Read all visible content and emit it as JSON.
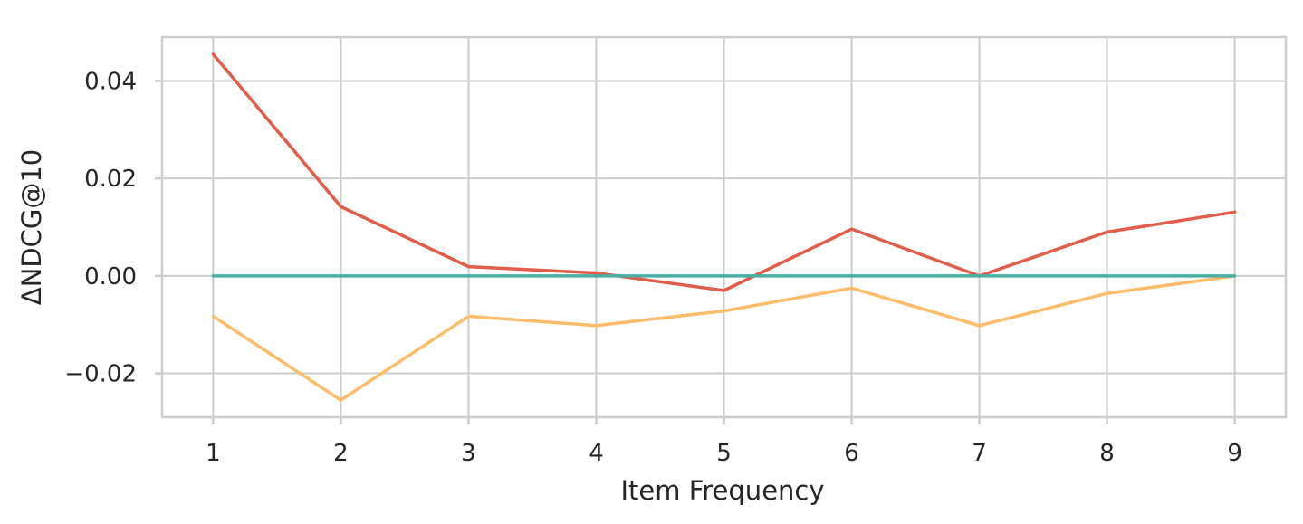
{
  "chart_data": {
    "type": "line",
    "x": [
      1,
      2,
      3,
      4,
      5,
      6,
      7,
      8,
      9
    ],
    "xlabel": "Item Frequency",
    "ylabel": "ΔNDCG@10",
    "xlim": [
      0.6,
      9.4
    ],
    "ylim": [
      -0.029,
      0.049
    ],
    "xticks": [
      1,
      2,
      3,
      4,
      5,
      6,
      7,
      8,
      9
    ],
    "yticks": [
      -0.02,
      0.0,
      0.02,
      0.04
    ],
    "ytick_labels": [
      "−0.02",
      "0.00",
      "0.02",
      "0.04"
    ],
    "grid": true,
    "legend": false,
    "series": [
      {
        "values": [
          0.0455,
          0.0142,
          0.0019,
          0.0006,
          -0.003,
          0.0096,
          0.0,
          0.009,
          0.0131
        ],
        "color": "#e05c4b"
      },
      {
        "values": [
          -0.0083,
          -0.0255,
          -0.0083,
          -0.0102,
          -0.0072,
          -0.0025,
          -0.0102,
          -0.0036,
          0.0
        ],
        "color": "#fbbd6a"
      },
      {
        "values": [
          0,
          0,
          0,
          0,
          0,
          0,
          0,
          0,
          0
        ],
        "color": "#4aada3"
      }
    ]
  }
}
